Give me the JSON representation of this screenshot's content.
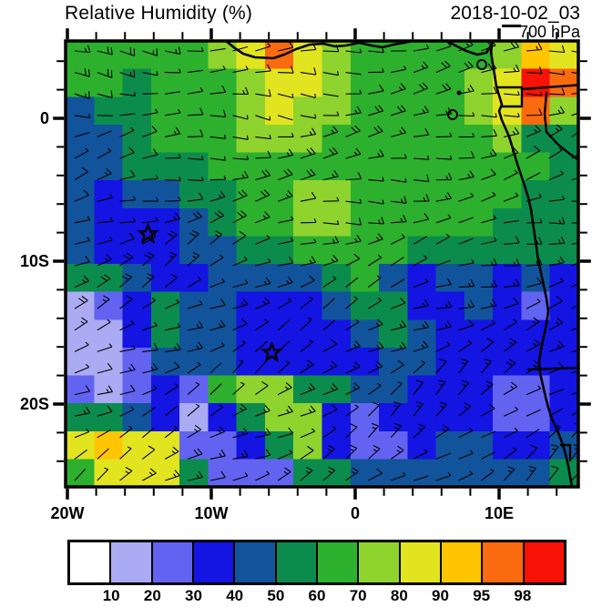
{
  "header": {
    "title": "Relative Humidity (%)",
    "datetime": "2018-10-02_03",
    "level": "700 hPa"
  },
  "axes": {
    "x_ticks": [
      {
        "label": "20W",
        "lon": -20
      },
      {
        "label": "10W",
        "lon": -10
      },
      {
        "label": "0",
        "lon": 0
      },
      {
        "label": "10E",
        "lon": 10
      }
    ],
    "y_ticks": [
      {
        "label": "0",
        "lat": 0
      },
      {
        "label": "10S",
        "lat": -10
      },
      {
        "label": "20S",
        "lat": -20
      }
    ],
    "minor_tick_interval_deg": 2
  },
  "colorbar": {
    "labels": [
      "10",
      "20",
      "30",
      "40",
      "50",
      "60",
      "70",
      "80",
      "90",
      "95",
      "98"
    ],
    "colors": [
      "#FFFFFF",
      "#ABABF3",
      "#6363F1",
      "#1414E3",
      "#11549B",
      "#0B8C4D",
      "#2DB02D",
      "#8FD32E",
      "#E2E41F",
      "#FFC503",
      "#FA6B0F",
      "#F61207"
    ]
  },
  "chart_data": {
    "type": "heatmap",
    "title": "Relative Humidity (%)",
    "valid_time": "2018-10-02_03",
    "pressure_level": "700 hPa",
    "units": "%",
    "lon_range": [
      -20.1,
      15.5
    ],
    "lat_range": [
      5.4,
      -25.8
    ],
    "contour_levels": [
      10,
      20,
      30,
      40,
      50,
      60,
      70,
      80,
      90,
      95,
      98
    ],
    "grid_rows": 16,
    "grid_cols": 18,
    "rh_grid": [
      [
        65,
        65,
        65,
        65,
        65,
        75,
        88,
        96,
        85,
        78,
        65,
        65,
        65,
        65,
        65,
        72,
        90,
        88
      ],
      [
        65,
        62,
        58,
        60,
        65,
        68,
        75,
        85,
        80,
        70,
        65,
        60,
        65,
        68,
        72,
        80,
        99,
        95
      ],
      [
        40,
        55,
        55,
        60,
        65,
        65,
        72,
        80,
        75,
        70,
        65,
        60,
        65,
        65,
        72,
        88,
        95,
        75
      ],
      [
        40,
        45,
        55,
        60,
        60,
        65,
        70,
        75,
        70,
        65,
        65,
        60,
        60,
        65,
        65,
        70,
        50,
        55
      ],
      [
        45,
        40,
        50,
        55,
        58,
        60,
        65,
        65,
        65,
        65,
        65,
        60,
        60,
        68,
        60,
        60,
        60,
        55
      ],
      [
        45,
        38,
        40,
        45,
        50,
        58,
        62,
        65,
        70,
        70,
        65,
        62,
        60,
        65,
        65,
        60,
        55,
        55
      ],
      [
        42,
        35,
        33,
        38,
        45,
        55,
        60,
        62,
        70,
        70,
        65,
        60,
        60,
        60,
        60,
        58,
        55,
        55
      ],
      [
        45,
        38,
        35,
        38,
        45,
        48,
        55,
        58,
        62,
        65,
        62,
        60,
        55,
        55,
        55,
        55,
        52,
        50
      ],
      [
        58,
        55,
        45,
        35,
        33,
        42,
        45,
        42,
        45,
        52,
        65,
        45,
        38,
        45,
        45,
        38,
        40,
        35
      ],
      [
        18,
        22,
        35,
        50,
        45,
        42,
        35,
        33,
        35,
        42,
        58,
        50,
        38,
        36,
        42,
        36,
        28,
        33
      ],
      [
        12,
        18,
        30,
        50,
        45,
        42,
        35,
        32,
        33,
        36,
        44,
        52,
        42,
        36,
        35,
        35,
        33,
        33
      ],
      [
        10,
        15,
        22,
        48,
        42,
        42,
        35,
        32,
        32,
        35,
        38,
        48,
        40,
        36,
        34,
        33,
        32,
        32
      ],
      [
        25,
        18,
        20,
        32,
        25,
        60,
        72,
        70,
        55,
        50,
        42,
        40,
        38,
        35,
        33,
        25,
        25,
        32
      ],
      [
        58,
        50,
        40,
        32,
        18,
        30,
        55,
        72,
        70,
        35,
        25,
        30,
        35,
        35,
        33,
        25,
        28,
        36
      ],
      [
        80,
        90,
        80,
        88,
        25,
        28,
        33,
        50,
        70,
        35,
        25,
        28,
        36,
        48,
        46,
        32,
        35,
        45
      ],
      [
        65,
        85,
        85,
        80,
        50,
        22,
        22,
        25,
        55,
        55,
        48,
        40,
        48,
        48,
        45,
        40,
        45,
        50
      ]
    ],
    "markers": [
      {
        "shape": "star",
        "lon": -14.4,
        "lat": -8.1
      },
      {
        "shape": "star",
        "lon": -5.8,
        "lat": -16.4
      }
    ],
    "wind_barbs": {
      "coverage": "full domain",
      "mean_flow": "easterly to southeasterly trade winds, 5-20 kt"
    },
    "legend_position": "bottom",
    "grid_lines": false
  }
}
